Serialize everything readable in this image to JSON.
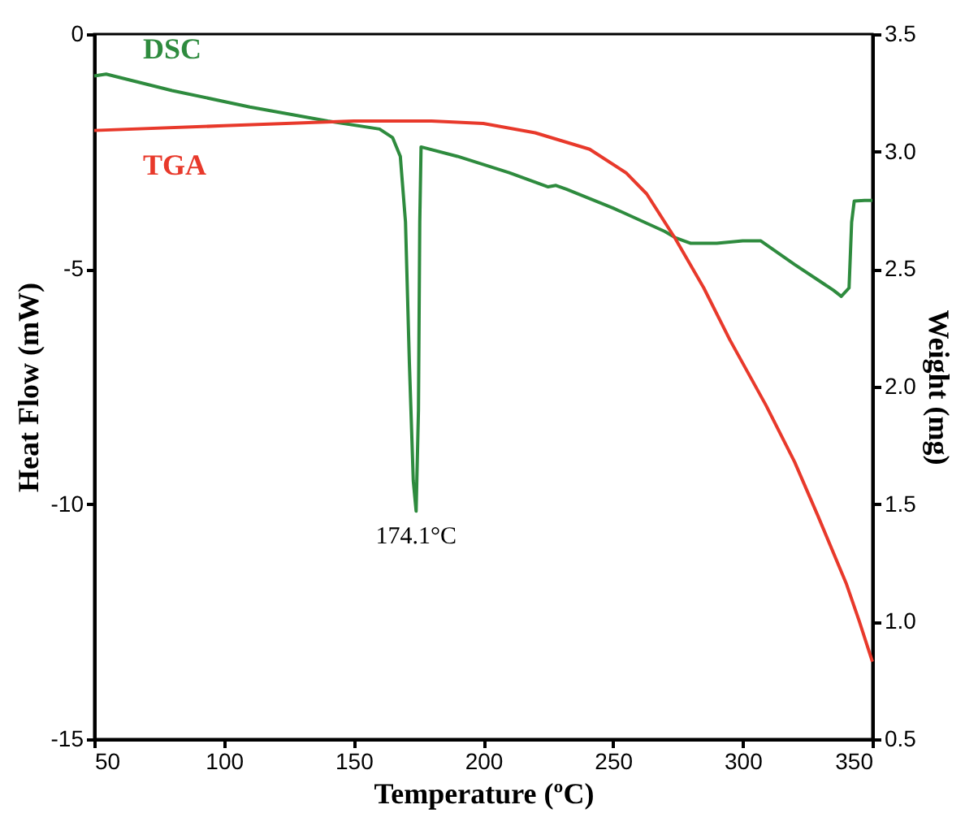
{
  "chart_data": {
    "type": "line",
    "xlabel": "Temperature (ºC)",
    "ylabel": "Heat Flow (mW)",
    "y2label": "Weight (mg)",
    "xlim": [
      50,
      350
    ],
    "xticks": [
      50,
      100,
      150,
      200,
      250,
      300,
      350
    ],
    "ylim": [
      -15,
      0
    ],
    "yticks": [
      -15,
      -10,
      -5,
      0
    ],
    "y2lim": [
      0.5,
      3.5
    ],
    "y2ticks": [
      {
        "value": 0.5,
        "label": "0.5"
      },
      {
        "value": 1,
        "label": "1.0"
      },
      {
        "value": 1.5,
        "label": "1.5"
      },
      {
        "value": 2,
        "label": "2.0"
      },
      {
        "value": 2.5,
        "label": "2.5"
      },
      {
        "value": 3,
        "label": "3.0"
      },
      {
        "value": 3.5,
        "label": "3.5"
      }
    ],
    "grid": false,
    "marker": "none",
    "line_style": "solid",
    "series": [
      {
        "name": "DSC",
        "color": "#2e8b3e",
        "x": [
          50,
          54.6,
          80,
          110,
          140,
          160,
          165,
          168,
          170,
          171.5,
          173,
          174.1,
          175,
          175.5,
          176,
          190,
          210,
          225,
          228,
          232,
          250,
          270,
          274,
          280,
          290,
          300,
          307,
          320,
          335,
          338,
          341,
          342,
          343,
          347,
          350
        ],
        "values": [
          -0.89,
          -0.85,
          -1.2,
          -1.55,
          -1.85,
          -2.02,
          -2.2,
          -2.6,
          -4,
          -7,
          -9.5,
          -10.15,
          -8,
          -4,
          -2.4,
          -2.6,
          -2.95,
          -3.25,
          -3.22,
          -3.3,
          -3.7,
          -4.2,
          -4.33,
          -4.45,
          -4.45,
          -4.4,
          -4.4,
          -4.9,
          -5.45,
          -5.58,
          -5.4,
          -4,
          -3.55,
          -3.54,
          -3.54
        ]
      },
      {
        "name": "TGA",
        "color": "#e8392b",
        "axis": "y2",
        "x": [
          50,
          100,
          150,
          180,
          200,
          220,
          241,
          255,
          263,
          274,
          285,
          295,
          309,
          320,
          329,
          340,
          345,
          350
        ],
        "values": [
          3.09,
          3.11,
          3.13,
          3.13,
          3.12,
          3.08,
          3.01,
          2.91,
          2.82,
          2.63,
          2.42,
          2.2,
          1.92,
          1.68,
          1.45,
          1.16,
          1.0,
          0.83
        ]
      }
    ],
    "annotations": [
      {
        "text": "174.1°C",
        "x": 174.1,
        "y": -10.15
      }
    ]
  }
}
